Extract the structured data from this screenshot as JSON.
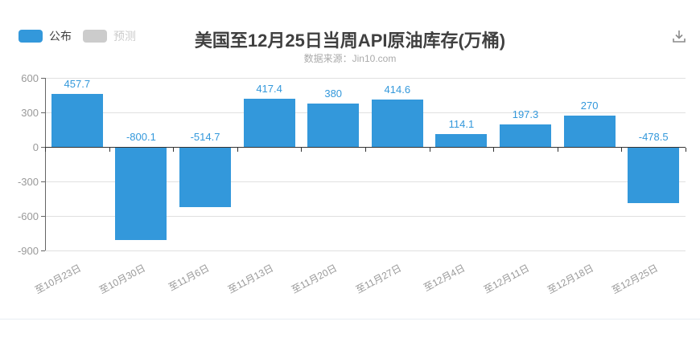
{
  "header": {
    "title": "美国至12月25日当周API原油库存(万桶)",
    "subtitle": "数据来源：Jin10.com",
    "legend": [
      {
        "label": "公布",
        "swatch_color": "#3398db",
        "text_color": "#404040",
        "active": true
      },
      {
        "label": "预测",
        "swatch_color": "#cccccc",
        "text_color": "#cccccc",
        "active": false
      }
    ],
    "download_icon": "download-icon",
    "icon_color": "#8a8a8a"
  },
  "chart_data": {
    "type": "bar",
    "title": "美国至12月25日当周API原油库存(万桶)",
    "subtitle": "数据来源：Jin10.com",
    "categories": [
      "至10月23日",
      "至10月30日",
      "至11月6日",
      "至11月13日",
      "至11月20日",
      "至11月27日",
      "至12月4日",
      "至12月11日",
      "至12月18日",
      "至12月25日"
    ],
    "series": [
      {
        "name": "公布",
        "color": "#3398db",
        "values": [
          457.7,
          -800.1,
          -514.7,
          417.4,
          380,
          414.6,
          114.1,
          197.3,
          270,
          -478.5
        ]
      },
      {
        "name": "预测",
        "color": "#cccccc",
        "values": []
      }
    ],
    "value_labels": [
      "457.7",
      "-800.1",
      "-514.7",
      "417.4",
      "380",
      "414.6",
      "114.1",
      "197.3",
      "270",
      "-478.5"
    ],
    "value_label_color": "#3398db",
    "ylim": [
      -900,
      600
    ],
    "yticks": [
      600,
      300,
      0,
      -300,
      -600,
      -900
    ],
    "grid": true,
    "legend_position": "top-left",
    "axis_label_color": "#999999"
  }
}
